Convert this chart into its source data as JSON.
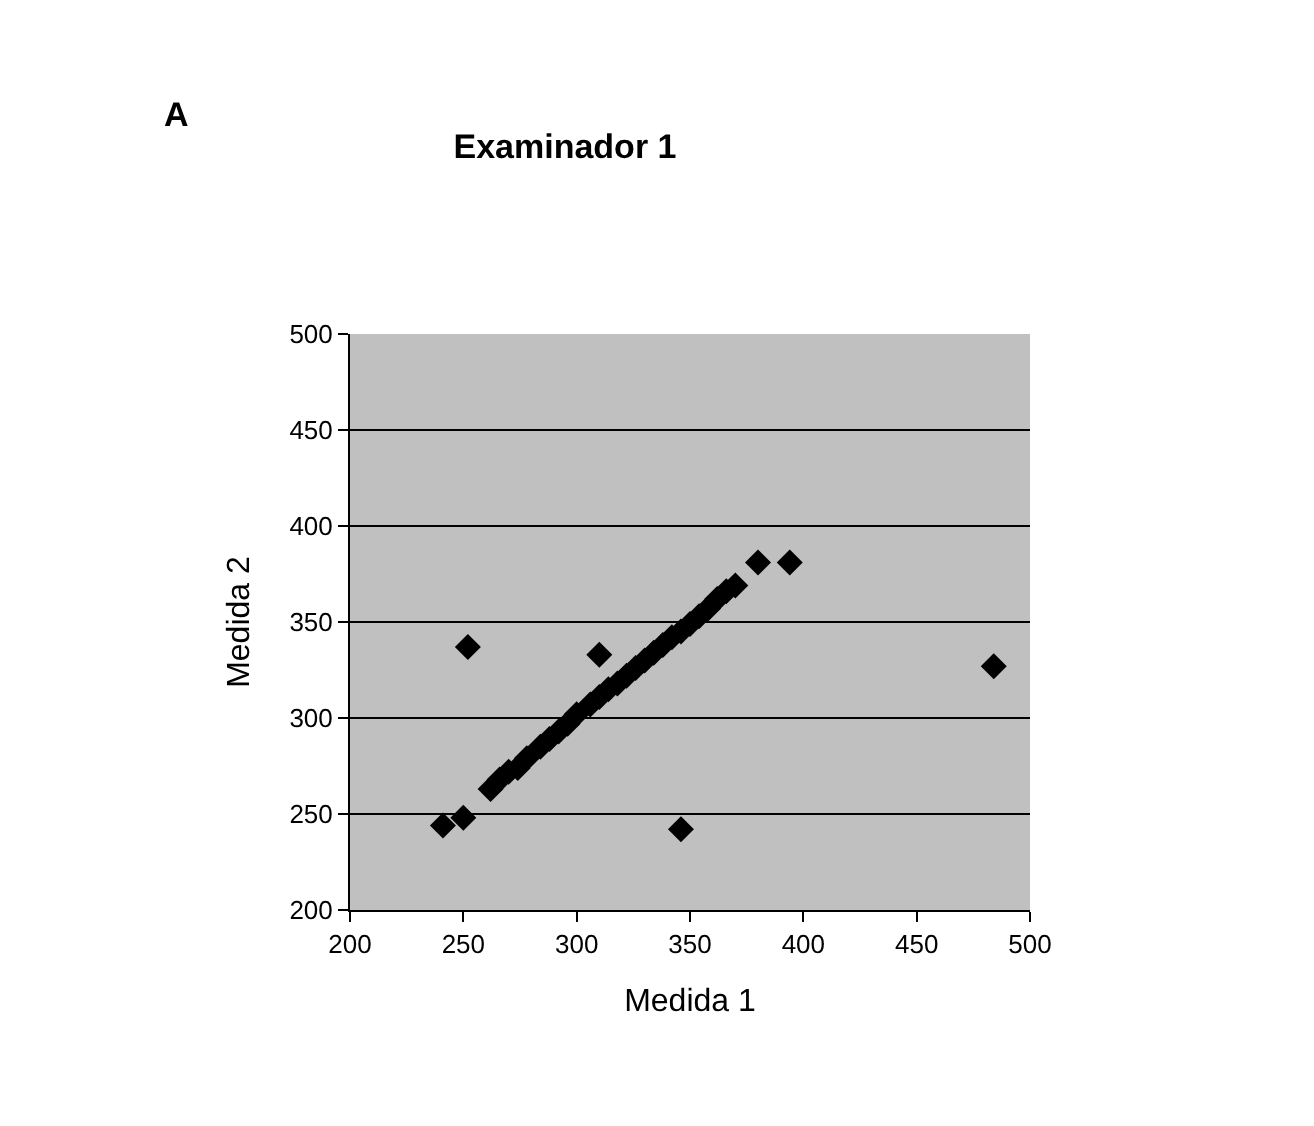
{
  "chart_data": {
    "type": "scatter",
    "title": "Examinador 1",
    "xlabel": "Medida 1",
    "ylabel": "Medida 2",
    "annotations": [
      "A"
    ],
    "x": [
      241,
      250,
      252,
      262,
      266,
      270,
      274,
      278,
      284,
      288,
      292,
      296,
      300,
      306,
      310,
      314,
      318,
      322,
      326,
      330,
      334,
      338,
      342,
      346,
      350,
      354,
      358,
      362,
      366,
      370,
      380,
      394,
      310,
      346,
      484
    ],
    "values": [
      244,
      248,
      337,
      263,
      268,
      272,
      274,
      279,
      285,
      289,
      293,
      297,
      302,
      307,
      311,
      315,
      318,
      322,
      326,
      330,
      334,
      338,
      342,
      345,
      349,
      353,
      357,
      362,
      366,
      369,
      381,
      381,
      333,
      242,
      327
    ],
    "color": "#000000",
    "marker": "diamond",
    "xlim": [
      200,
      500
    ],
    "ylim": [
      200,
      500
    ],
    "xticks": [
      200,
      250,
      300,
      350,
      400,
      450,
      500
    ],
    "yticks": [
      200,
      250,
      300,
      350,
      400,
      450,
      500
    ],
    "grid": "y",
    "legend": false
  }
}
